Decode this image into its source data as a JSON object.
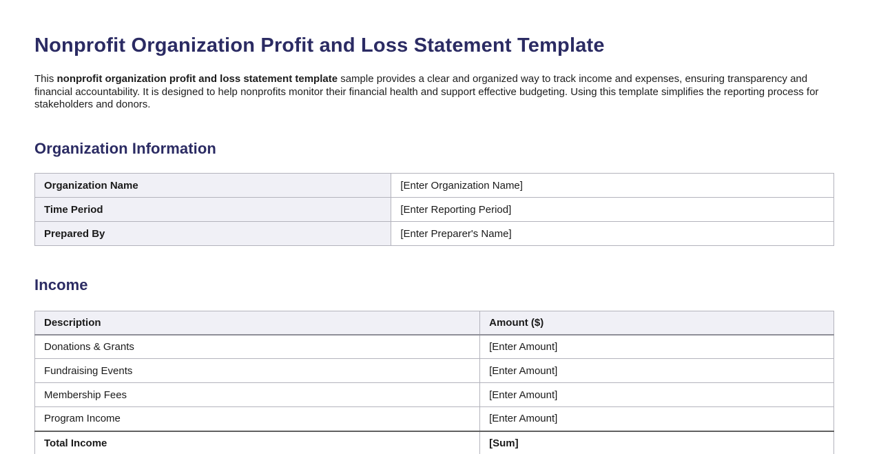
{
  "page": {
    "title": "Nonprofit Organization Profit and Loss Statement Template",
    "intro": {
      "prefix": "This ",
      "bold_phrase": "nonprofit organization profit and loss statement template",
      "suffix": " sample provides a clear and organized way to track income and expenses, ensuring transparency and financial accountability. It is designed to help nonprofits monitor their financial health and support effective budgeting. Using this template simplifies the reporting process for stakeholders and donors."
    }
  },
  "org_info": {
    "heading": "Organization Information",
    "rows": [
      {
        "label": "Organization Name",
        "value": "[Enter Organization Name]"
      },
      {
        "label": "Time Period",
        "value": "[Enter Reporting Period]"
      },
      {
        "label": "Prepared By",
        "value": "[Enter Preparer's Name]"
      }
    ]
  },
  "income": {
    "heading": "Income",
    "columns": {
      "description": "Description",
      "amount": "Amount ($)"
    },
    "rows": [
      {
        "description": "Donations & Grants",
        "amount": "[Enter Amount]"
      },
      {
        "description": "Fundraising Events",
        "amount": "[Enter Amount]"
      },
      {
        "description": "Membership Fees",
        "amount": "[Enter Amount]"
      },
      {
        "description": "Program Income",
        "amount": "[Enter Amount]"
      }
    ],
    "total": {
      "label": "Total Income",
      "amount": "[Sum]"
    }
  },
  "colors": {
    "heading_navy": "#2b2b63",
    "body_text": "#1c1c1c",
    "table_header_bg": "#f0f0f6",
    "border_light": "#b3b3bc",
    "border_header_rule": "#8f8f98",
    "border_total_rule": "#5f5f5f"
  }
}
